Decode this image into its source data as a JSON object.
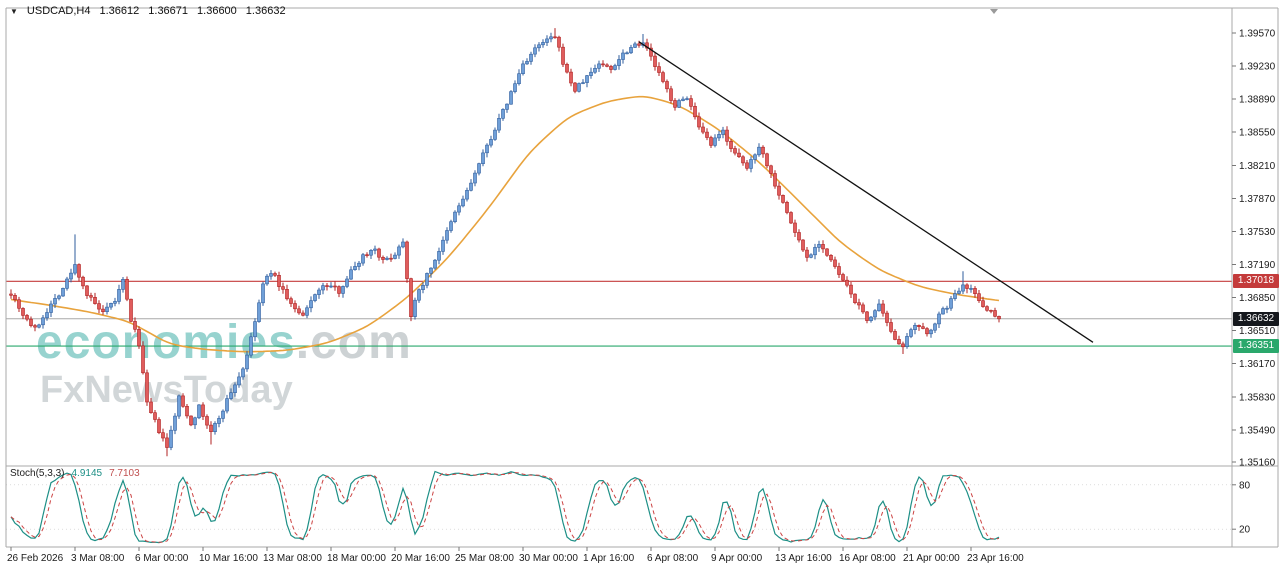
{
  "header": {
    "symbol": "USDCAD,H4",
    "open": "1.36612",
    "high": "1.36671",
    "low": "1.36600",
    "close": "1.36632"
  },
  "icons": {
    "symbol_dropdown": "▼"
  },
  "watermark": {
    "brand": "economies",
    "domain": ".com",
    "tagline": "FxNewsToday"
  },
  "indicator_label": {
    "name": "Stoch(5,3,3)",
    "main_value": "4.9145",
    "signal_value": "7.7103",
    "levels": [
      "80",
      "20"
    ]
  },
  "colors": {
    "up_fill": "#6f9fd8",
    "up_stroke": "#2f5e9e",
    "down_fill": "#e05c5c",
    "down_stroke": "#b02020",
    "ma": "#e8a33d",
    "trendline": "#111111",
    "resistance": "#c43b3b",
    "support": "#2aa86c",
    "current_line": "#a8a8a8",
    "current_chip_bg": "#15181d",
    "stoch_main": "#1d8f86",
    "stoch_signal": "#cc4444",
    "axis_text": "#1a1a1a",
    "frame": "#a9a9a9"
  },
  "chart_data": {
    "type": "candlestick",
    "symbol": "USDCAD",
    "timeframe": "H4",
    "ylim": [
      1.351188,
      1.39827
    ],
    "bars_total": 248,
    "price_path_anchors": [
      [
        0,
        1.369
      ],
      [
        3,
        1.3668
      ],
      [
        6,
        1.3652
      ],
      [
        9,
        1.3672
      ],
      [
        13,
        1.3695
      ],
      [
        16,
        1.3718
      ],
      [
        19,
        1.3688
      ],
      [
        23,
        1.3668
      ],
      [
        26,
        1.3682
      ],
      [
        28,
        1.3702
      ],
      [
        30,
        1.3662
      ],
      [
        32,
        1.3638
      ],
      [
        34,
        1.3575
      ],
      [
        37,
        1.3548
      ],
      [
        39,
        1.353
      ],
      [
        42,
        1.3582
      ],
      [
        45,
        1.3556
      ],
      [
        47,
        1.3572
      ],
      [
        50,
        1.3546
      ],
      [
        52,
        1.3562
      ],
      [
        55,
        1.3588
      ],
      [
        58,
        1.3612
      ],
      [
        60,
        1.3642
      ],
      [
        63,
        1.3698
      ],
      [
        65,
        1.3712
      ],
      [
        68,
        1.3692
      ],
      [
        71,
        1.3672
      ],
      [
        73,
        1.3665
      ],
      [
        76,
        1.369
      ],
      [
        79,
        1.3698
      ],
      [
        82,
        1.3692
      ],
      [
        85,
        1.3712
      ],
      [
        88,
        1.3728
      ],
      [
        91,
        1.3736
      ],
      [
        93,
        1.3722
      ],
      [
        96,
        1.373
      ],
      [
        98,
        1.3744
      ],
      [
        100,
        1.3668
      ],
      [
        102,
        1.3692
      ],
      [
        105,
        1.3716
      ],
      [
        108,
        1.3742
      ],
      [
        111,
        1.3772
      ],
      [
        114,
        1.3794
      ],
      [
        117,
        1.3822
      ],
      [
        120,
        1.385
      ],
      [
        123,
        1.3876
      ],
      [
        126,
        1.3905
      ],
      [
        128,
        1.3925
      ],
      [
        131,
        1.394
      ],
      [
        134,
        1.395
      ],
      [
        136,
        1.3952
      ],
      [
        139,
        1.3915
      ],
      [
        141,
        1.3898
      ],
      [
        144,
        1.3912
      ],
      [
        147,
        1.3926
      ],
      [
        150,
        1.392
      ],
      [
        153,
        1.3936
      ],
      [
        156,
        1.3946
      ],
      [
        158,
        1.3948
      ],
      [
        160,
        1.3932
      ],
      [
        163,
        1.3906
      ],
      [
        166,
        1.3882
      ],
      [
        169,
        1.3892
      ],
      [
        172,
        1.3858
      ],
      [
        175,
        1.3842
      ],
      [
        178,
        1.3856
      ],
      [
        181,
        1.3832
      ],
      [
        184,
        1.3818
      ],
      [
        187,
        1.3842
      ],
      [
        190,
        1.3812
      ],
      [
        193,
        1.3782
      ],
      [
        196,
        1.3752
      ],
      [
        199,
        1.3726
      ],
      [
        202,
        1.3742
      ],
      [
        205,
        1.3722
      ],
      [
        208,
        1.3702
      ],
      [
        211,
        1.3682
      ],
      [
        214,
        1.3662
      ],
      [
        217,
        1.3676
      ],
      [
        220,
        1.3648
      ],
      [
        223,
        1.3636
      ],
      [
        226,
        1.3656
      ],
      [
        229,
        1.3648
      ],
      [
        232,
        1.3666
      ],
      [
        235,
        1.3682
      ],
      [
        238,
        1.37
      ],
      [
        240,
        1.3694
      ],
      [
        242,
        1.3682
      ],
      [
        245,
        1.367
      ],
      [
        247,
        1.36632
      ]
    ],
    "wick_overrides": [
      {
        "bar": 16,
        "high": 1.375
      },
      {
        "bar": 39,
        "low": 1.3522
      },
      {
        "bar": 50,
        "low": 1.3534
      },
      {
        "bar": 136,
        "high": 1.3962
      },
      {
        "bar": 158,
        "high": 1.3956
      },
      {
        "bar": 223,
        "low": 1.3627
      },
      {
        "bar": 238,
        "high": 1.3712
      },
      {
        "bar": 247,
        "close": 1.36632
      }
    ],
    "ma_anchors": [
      [
        0,
        1.3683
      ],
      [
        10,
        1.3677
      ],
      [
        20,
        1.367
      ],
      [
        30,
        1.366
      ],
      [
        40,
        1.3636
      ],
      [
        50,
        1.3631
      ],
      [
        60,
        1.3629
      ],
      [
        70,
        1.3631
      ],
      [
        80,
        1.3639
      ],
      [
        90,
        1.3657
      ],
      [
        100,
        1.3688
      ],
      [
        110,
        1.3729
      ],
      [
        120,
        1.378
      ],
      [
        130,
        1.3837
      ],
      [
        140,
        1.3873
      ],
      [
        150,
        1.3888
      ],
      [
        159,
        1.3893
      ],
      [
        168,
        1.3881
      ],
      [
        178,
        1.3855
      ],
      [
        188,
        1.3821
      ],
      [
        198,
        1.378
      ],
      [
        208,
        1.3739
      ],
      [
        218,
        1.3711
      ],
      [
        228,
        1.3695
      ],
      [
        238,
        1.3687
      ],
      [
        247,
        1.3682
      ]
    ],
    "trendline": {
      "from_bar": 157,
      "from_price": 1.3948,
      "to_bar": 270.5,
      "to_price": 1.3639
    },
    "hlines": [
      {
        "price": 1.37018,
        "label": "1.37018",
        "role": "resistance"
      },
      {
        "price": 1.36632,
        "label": "1.36632",
        "role": "current"
      },
      {
        "price": 1.36351,
        "label": "1.36351",
        "role": "support"
      }
    ],
    "y_ticks": [
      {
        "label": "1.39570",
        "price": 1.3957
      },
      {
        "label": "1.39230",
        "price": 1.3923
      },
      {
        "label": "1.38890",
        "price": 1.3889
      },
      {
        "label": "1.38550",
        "price": 1.3855
      },
      {
        "label": "1.38210",
        "price": 1.3821
      },
      {
        "label": "1.37870",
        "price": 1.3787
      },
      {
        "label": "1.37530",
        "price": 1.3753
      },
      {
        "label": "1.37190",
        "price": 1.3719
      },
      {
        "label": "1.36850",
        "price": 1.3685
      },
      {
        "label": "1.36510",
        "price": 1.3651
      },
      {
        "label": "1.36170",
        "price": 1.3617
      },
      {
        "label": "1.35830",
        "price": 1.3583
      },
      {
        "label": "1.35490",
        "price": 1.3549
      },
      {
        "label": "1.35160",
        "price": 1.3516
      }
    ],
    "x_ticks": [
      {
        "label": "26 Feb 2026",
        "bar": 0
      },
      {
        "label": "3 Mar 08:00",
        "bar": 16
      },
      {
        "label": "6 Mar 00:00",
        "bar": 32
      },
      {
        "label": "10 Mar 16:00",
        "bar": 48
      },
      {
        "label": "13 Mar 08:00",
        "bar": 64
      },
      {
        "label": "18 Mar 00:00",
        "bar": 80
      },
      {
        "label": "20 Mar 16:00",
        "bar": 96
      },
      {
        "label": "25 Mar 08:00",
        "bar": 112
      },
      {
        "label": "30 Mar 00:00",
        "bar": 128
      },
      {
        "label": "1 Apr 16:00",
        "bar": 144
      },
      {
        "label": "6 Apr 08:00",
        "bar": 160
      },
      {
        "label": "9 Apr 00:00",
        "bar": 176
      },
      {
        "label": "13 Apr 16:00",
        "bar": 192
      },
      {
        "label": "16 Apr 08:00",
        "bar": 208
      },
      {
        "label": "21 Apr 00:00",
        "bar": 224
      },
      {
        "label": "23 Apr 16:00",
        "bar": 240
      }
    ],
    "stochastic": {
      "type": "line",
      "params": [
        5,
        3,
        3
      ],
      "levels": [
        80,
        20
      ],
      "range": [
        0,
        100
      ],
      "last_main": 4.9145,
      "last_signal": 7.7103
    }
  }
}
